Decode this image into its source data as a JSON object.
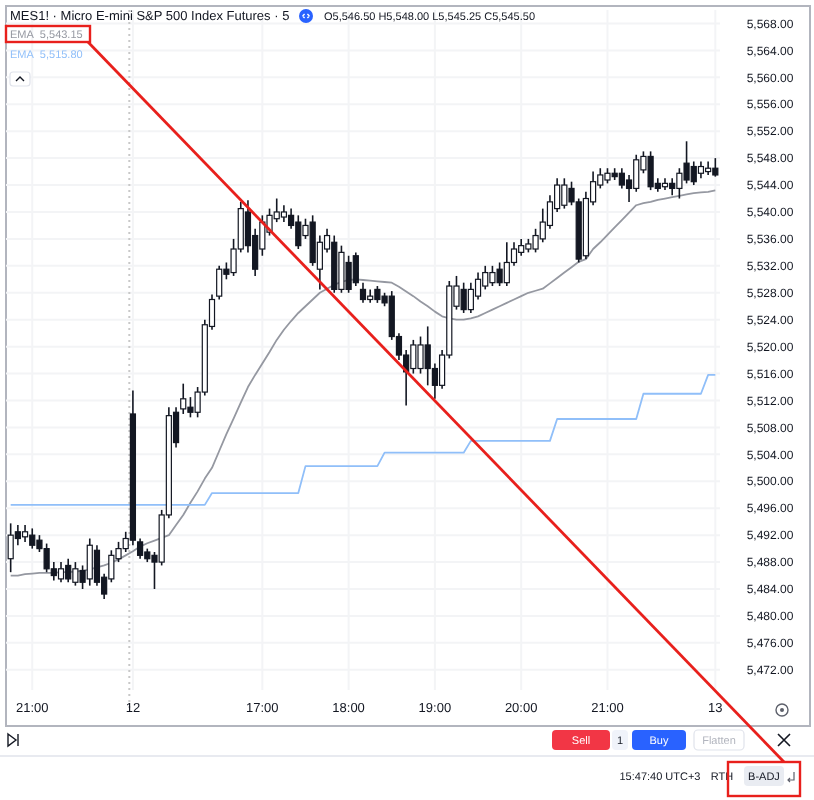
{
  "chart_data": {
    "type": "candlestick",
    "title": "MES1! · Micro E-mini S&P 500 Index Futures · 5",
    "annotations": [
      "O5,546.50 H5,548.00 L5,545.25 C5,545.50",
      "Sell",
      "1",
      "Buy",
      "Flatten",
      "15:47:40 UTC+3",
      "RTH",
      "B-ADJ",
      "5,543.15",
      "5,515.80"
    ],
    "color": "#131722",
    "categories": [
      null,
      null,
      null,
      "21:00",
      null,
      null,
      null,
      null,
      null,
      null,
      null,
      null,
      null,
      null,
      null,
      null,
      null,
      "12",
      null,
      null,
      null,
      null,
      null,
      null,
      null,
      null,
      null,
      null,
      null,
      null,
      null,
      null,
      null,
      null,
      null,
      "17:00",
      null,
      null,
      null,
      null,
      null,
      null,
      null,
      null,
      null,
      null,
      null,
      "18:00",
      null,
      null,
      null,
      null,
      null,
      null,
      null,
      null,
      null,
      null,
      null,
      "19:00",
      null,
      null,
      null,
      null,
      null,
      null,
      null,
      null,
      null,
      null,
      null,
      "20:00",
      null,
      null,
      null,
      null,
      null,
      null,
      null,
      null,
      null,
      null,
      null,
      "21:00",
      null,
      null,
      null,
      null,
      null,
      null,
      null,
      null,
      null,
      null,
      null,
      null,
      null,
      null,
      "13"
    ],
    "ohlc": [
      [
        5488.5,
        5493.75,
        5486.5,
        5492
      ],
      [
        5492.5,
        5493.5,
        5490.5,
        5491.5
      ],
      [
        5491.75,
        5493.5,
        5491,
        5492.5
      ],
      [
        5492,
        5493,
        5490,
        5490.5
      ],
      [
        5491.25,
        5492,
        5489.5,
        5490
      ],
      [
        5490,
        5490.75,
        5486.5,
        5487
      ],
      [
        5487,
        5488,
        5485.25,
        5486
      ],
      [
        5485.5,
        5488,
        5485,
        5487
      ],
      [
        5487.5,
        5488.5,
        5485,
        5485.5
      ],
      [
        5485,
        5488,
        5484.5,
        5487
      ],
      [
        5486.75,
        5487.5,
        5484,
        5485
      ],
      [
        5485.5,
        5491.5,
        5484.5,
        5490.5
      ],
      [
        5489.75,
        5490.5,
        5484.5,
        5485
      ],
      [
        5485.75,
        5486.25,
        5482.5,
        5483.25
      ],
      [
        5485.5,
        5489.75,
        5485,
        5489
      ],
      [
        5488.5,
        5491,
        5488,
        5490
      ],
      [
        5490,
        5492.5,
        5489.5,
        5491.5
      ],
      [
        5510,
        5513.5,
        5490.5,
        5491.25
      ],
      [
        5491,
        5491.5,
        5488.5,
        5489
      ],
      [
        5489.5,
        5490,
        5488,
        5488.5
      ],
      [
        5489,
        5489.5,
        5484,
        5488
      ],
      [
        5488,
        5495.75,
        5487.5,
        5495
      ],
      [
        5495,
        5511,
        5494.5,
        5509.75
      ],
      [
        5510.25,
        5511,
        5505,
        5505.75
      ],
      [
        5510.75,
        5514.5,
        5510,
        5512.25
      ],
      [
        5511,
        5512.5,
        5509.5,
        5510.25
      ],
      [
        5510.25,
        5514,
        5509.5,
        5513.25
      ],
      [
        5513.25,
        5524,
        5512.75,
        5523.25
      ],
      [
        5523,
        5527.75,
        5522.5,
        5527
      ],
      [
        5527.5,
        5532,
        5527,
        5531.5
      ],
      [
        5531.5,
        5532.5,
        5530,
        5530.75
      ],
      [
        5531,
        5536,
        5530.5,
        5534.5
      ],
      [
        5534.5,
        5541.5,
        5534,
        5540.5
      ],
      [
        5540,
        5541.75,
        5534,
        5535
      ],
      [
        5536.5,
        5537.5,
        5530.5,
        5531.5
      ],
      [
        5534.5,
        5539.5,
        5533.5,
        5538.5
      ],
      [
        5537,
        5540.5,
        5536.5,
        5539.5
      ],
      [
        5539,
        5542,
        5538.5,
        5540
      ],
      [
        5539.25,
        5541,
        5538.5,
        5540
      ],
      [
        5539.5,
        5540.5,
        5537.5,
        5538
      ],
      [
        5538.5,
        5539.5,
        5534.5,
        5535
      ],
      [
        5536.5,
        5539,
        5536,
        5538
      ],
      [
        5538.5,
        5539.5,
        5532,
        5532.5
      ],
      [
        5531.5,
        5536.5,
        5528.5,
        5535.5
      ],
      [
        5534.5,
        5537.5,
        5534,
        5536.5
      ],
      [
        5535.5,
        5536.5,
        5528,
        5528.5
      ],
      [
        5528.5,
        5535,
        5528,
        5534
      ],
      [
        5532.5,
        5533.5,
        5528,
        5528.5
      ],
      [
        5533.5,
        5534,
        5529,
        5529.5
      ],
      [
        5528.5,
        5529.5,
        5526.5,
        5527
      ],
      [
        5527,
        5528.5,
        5526.5,
        5527.5
      ],
      [
        5528.5,
        5529,
        5526.5,
        5527
      ],
      [
        5527.5,
        5528,
        5526,
        5526.5
      ],
      [
        5527.5,
        5528.25,
        5521,
        5521.5
      ],
      [
        5521.5,
        5522,
        5518,
        5518.75
      ],
      [
        5518.75,
        5519.5,
        5511.25,
        5516.25
      ],
      [
        5516.75,
        5521,
        5516,
        5520.25
      ],
      [
        5516.75,
        5521.5,
        5516,
        5520.25
      ],
      [
        5520.25,
        5523,
        5514.25,
        5516.75
      ],
      [
        5516.75,
        5517.5,
        5512.25,
        5514.25
      ],
      [
        5514.25,
        5519.5,
        5513.75,
        5518.75
      ],
      [
        5518.75,
        5529.75,
        5518.25,
        5529
      ],
      [
        5526,
        5530.5,
        5525.5,
        5529
      ],
      [
        5528.5,
        5529.5,
        5525,
        5525.5
      ],
      [
        5525.5,
        5529.5,
        5525,
        5528.5
      ],
      [
        5527.5,
        5531,
        5527,
        5530
      ],
      [
        5529,
        5532,
        5528.5,
        5531
      ],
      [
        5529.5,
        5532,
        5529,
        5531
      ],
      [
        5531.5,
        5532.5,
        5529,
        5529.5
      ],
      [
        5529.5,
        5535.5,
        5529,
        5532.5
      ],
      [
        5532.5,
        5535.5,
        5532,
        5534.5
      ],
      [
        5534,
        5536,
        5533.5,
        5535
      ],
      [
        5534.5,
        5536,
        5534,
        5535.25
      ],
      [
        5534.5,
        5537.5,
        5534,
        5536.5
      ],
      [
        5536,
        5540.5,
        5535.5,
        5538.5
      ],
      [
        5538,
        5542.5,
        5537.5,
        5541.5
      ],
      [
        5540.5,
        5545,
        5540,
        5544
      ],
      [
        5541,
        5545,
        5540.5,
        5544
      ],
      [
        5543.5,
        5544.5,
        5541,
        5541.5
      ],
      [
        5541.5,
        5542,
        5532.5,
        5533
      ],
      [
        5533.5,
        5543,
        5533,
        5542
      ],
      [
        5541.5,
        5546,
        5541,
        5544.5
      ],
      [
        5544,
        5546.5,
        5543.5,
        5545.5
      ],
      [
        5544.75,
        5546.5,
        5544.25,
        5545.75
      ],
      [
        5545.75,
        5546.5,
        5544.75,
        5545.25
      ],
      [
        5545.75,
        5546.5,
        5543.5,
        5544
      ],
      [
        5544.75,
        5545.5,
        5541.5,
        5543.5
      ],
      [
        5543.5,
        5548.5,
        5543,
        5547.75
      ],
      [
        5546.25,
        5549,
        5545.75,
        5548.25
      ],
      [
        5548.25,
        5549,
        5543.25,
        5543.75
      ],
      [
        5544.25,
        5545,
        5543,
        5543.5
      ],
      [
        5543.75,
        5545,
        5543.25,
        5544.25
      ],
      [
        5544.25,
        5545,
        5542.5,
        5543.5
      ],
      [
        5543.5,
        5546.5,
        5542,
        5545.75
      ],
      [
        5547.25,
        5550.5,
        5544.25,
        5544.75
      ],
      [
        5546.75,
        5547.5,
        5544,
        5544.5
      ],
      [
        5545.75,
        5547.5,
        5545,
        5546.75
      ],
      [
        5546,
        5547.5,
        5545.5,
        5546.5
      ],
      [
        5546.5,
        5548,
        5545.25,
        5545.5
      ]
    ],
    "series": [
      {
        "name": "EMA",
        "type": "line",
        "color": "#9598a1",
        "values": [
          5486,
          5486,
          5486.2,
          5486.3,
          5486.4,
          5486.4,
          5486.4,
          5486.5,
          5486.5,
          5486.6,
          5486.7,
          5486.9,
          5487.2,
          5487.5,
          5487.9,
          5488.4,
          5489,
          5489.6,
          5490.3,
          5490.8,
          5491.2,
          5491.6,
          5492,
          5493.5,
          5495,
          5496.8,
          5498.5,
          5500.4,
          5502,
          5504.5,
          5507,
          5509.3,
          5511.7,
          5514,
          5515.8,
          5517.5,
          5519.2,
          5521,
          5522.5,
          5523.8,
          5525,
          5526,
          5527,
          5528,
          5528.6,
          5529.2,
          5529.6,
          5529.9,
          5530,
          5529.9,
          5529.8,
          5529.7,
          5529.6,
          5529.5,
          5528.9,
          5528.2,
          5527.5,
          5526.7,
          5526,
          5525.2,
          5524.5,
          5524.2,
          5524,
          5524,
          5524.2,
          5524.5,
          5525,
          5525.5,
          5526,
          5526.5,
          5527,
          5527.5,
          5528,
          5528.3,
          5528.6,
          5529.4,
          5530.2,
          5531,
          5531.8,
          5532.6,
          5533,
          5534.5,
          5535.5,
          5536.6,
          5537.7,
          5538.8,
          5539.9,
          5541,
          5541.3,
          5541.5,
          5541.8,
          5542,
          5542.2,
          5542.4,
          5542.6,
          5542.8,
          5542.9,
          5543,
          5543.2
        ]
      },
      {
        "name": "EMA",
        "type": "line",
        "color": "#90bff9",
        "values": [
          5496.5,
          5496.5,
          5496.5,
          5496.5,
          5496.5,
          5496.5,
          5496.5,
          5496.5,
          5496.5,
          5496.5,
          5496.5,
          5496.5,
          5496.5,
          5496.5,
          5496.5,
          5496.5,
          5496.5,
          5496.5,
          5496.5,
          5496.5,
          5496.5,
          5496.5,
          5496.5,
          5496.5,
          5496.5,
          5496.5,
          5496.5,
          5496.5,
          5498.25,
          5498.25,
          5498.25,
          5498.25,
          5498.25,
          5498.25,
          5498.25,
          5498.25,
          5498.25,
          5498.25,
          5498.25,
          5498.25,
          5498.25,
          5502.25,
          5502.25,
          5502.25,
          5502.25,
          5502.25,
          5502.25,
          5502.25,
          5502.25,
          5502.25,
          5502.25,
          5502.25,
          5504.25,
          5504.25,
          5504.25,
          5504.25,
          5504.25,
          5504.25,
          5504.25,
          5504.25,
          5504.25,
          5504.25,
          5504.25,
          5504.25,
          5506,
          5506,
          5506,
          5506,
          5506,
          5506,
          5506,
          5506,
          5506,
          5506,
          5506,
          5506,
          5509.25,
          5509.25,
          5509.25,
          5509.25,
          5509.25,
          5509.25,
          5509.25,
          5509.25,
          5509.25,
          5509.25,
          5509.25,
          5509.25,
          5513,
          5513,
          5513,
          5513,
          5513,
          5513,
          5513,
          5513,
          5513,
          5515.8,
          5515.8
        ]
      }
    ],
    "ylim": [
      5469,
      5570
    ],
    "yticks": [
      {
        "value": 5472,
        "label": "5,472.00"
      },
      {
        "value": 5476,
        "label": "5,476.00"
      },
      {
        "value": 5480,
        "label": "5,480.00"
      },
      {
        "value": 5484,
        "label": "5,484.00"
      },
      {
        "value": 5488,
        "label": "5,488.00"
      },
      {
        "value": 5492,
        "label": "5,492.00"
      },
      {
        "value": 5496,
        "label": "5,496.00"
      },
      {
        "value": 5500,
        "label": "5,500.00"
      },
      {
        "value": 5504,
        "label": "5,504.00"
      },
      {
        "value": 5508,
        "label": "5,508.00"
      },
      {
        "value": 5512,
        "label": "5,512.00"
      },
      {
        "value": 5516,
        "label": "5,516.00"
      },
      {
        "value": 5520,
        "label": "5,520.00"
      },
      {
        "value": 5524,
        "label": "5,524.00"
      },
      {
        "value": 5528,
        "label": "5,528.00"
      },
      {
        "value": 5532,
        "label": "5,532.00"
      },
      {
        "value": 5536,
        "label": "5,536.00"
      },
      {
        "value": 5540,
        "label": "5,540.00"
      },
      {
        "value": 5544,
        "label": "5,544.00"
      },
      {
        "value": 5548,
        "label": "5,548.00"
      },
      {
        "value": 5552,
        "label": "5,552.00"
      },
      {
        "value": 5556,
        "label": "5,556.00"
      },
      {
        "value": 5560,
        "label": "5,560.00"
      },
      {
        "value": 5564,
        "label": "5,564.00"
      },
      {
        "value": 5568,
        "label": "5,568.00"
      }
    ],
    "ref_lines": [
      {
        "axis": "x",
        "value": "12",
        "line_style": "dotted",
        "color": "#c8c8c8"
      }
    ],
    "grid": true,
    "legend": "top left"
  }
}
